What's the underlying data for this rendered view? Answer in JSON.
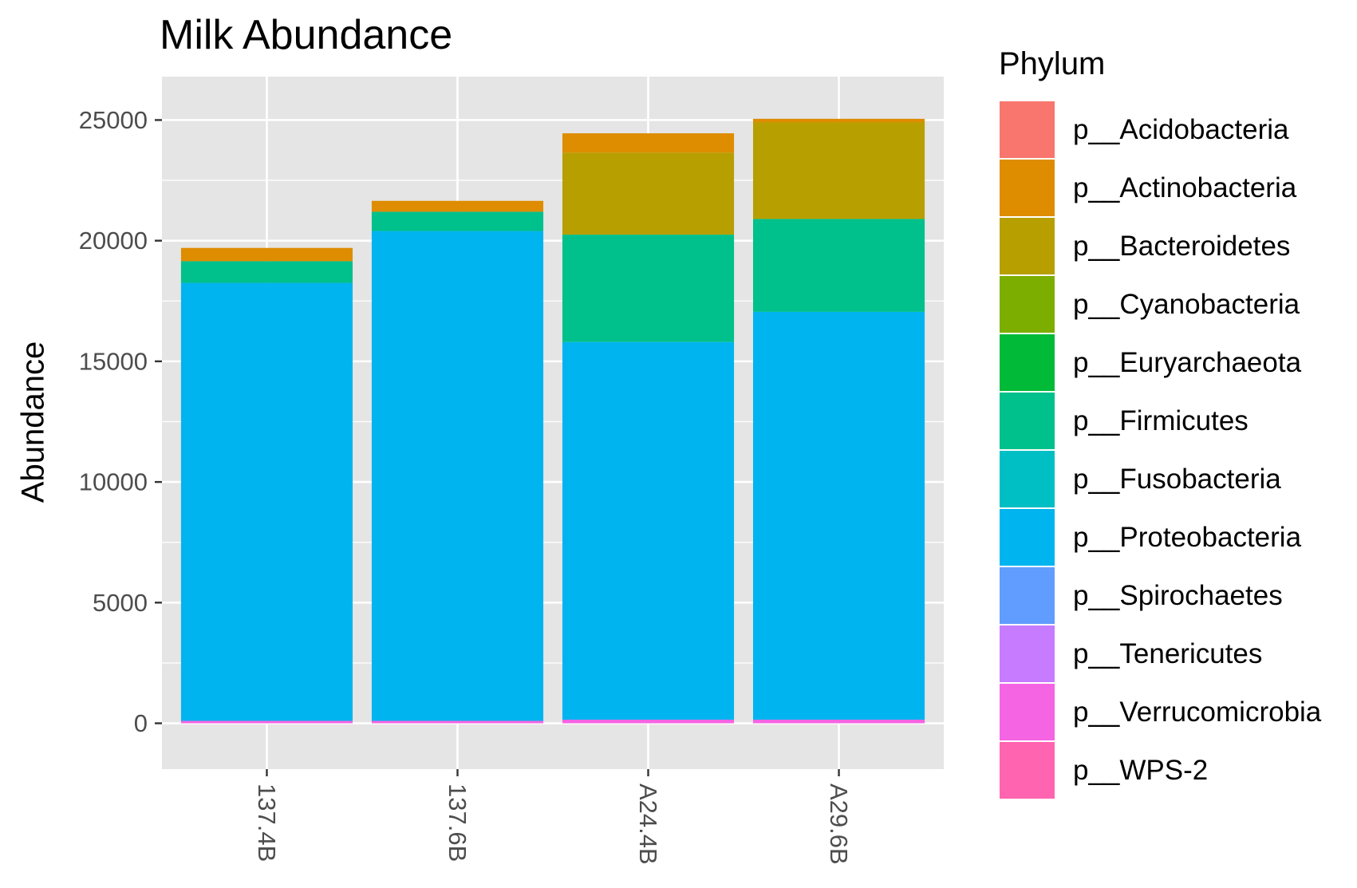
{
  "chart_data": {
    "type": "bar",
    "stacked": true,
    "title": "Milk Abundance",
    "xlabel": "",
    "ylabel": "Abundance",
    "legend_title": "Phylum",
    "legend_position": "right",
    "grid": true,
    "ylim": [
      -1900,
      26800
    ],
    "yticks": [
      0,
      5000,
      10000,
      15000,
      20000,
      25000
    ],
    "categories": [
      "137.4B",
      "137.6B",
      "A24.4B",
      "A29.6B"
    ],
    "series": [
      {
        "name": "p__Acidobacteria",
        "color": "#F8766D",
        "values": [
          0,
          0,
          0,
          0
        ]
      },
      {
        "name": "p__Actinobacteria",
        "color": "#DE8C00",
        "values": [
          550,
          450,
          800,
          150
        ]
      },
      {
        "name": "p__Bacteroidetes",
        "color": "#B79F00",
        "values": [
          0,
          0,
          3400,
          4000
        ]
      },
      {
        "name": "p__Cyanobacteria",
        "color": "#7CAE00",
        "values": [
          0,
          0,
          0,
          0
        ]
      },
      {
        "name": "p__Euryarchaeota",
        "color": "#00BA38",
        "values": [
          0,
          0,
          0,
          0
        ]
      },
      {
        "name": "p__Firmicutes",
        "color": "#00C08B",
        "values": [
          900,
          800,
          4450,
          3850
        ]
      },
      {
        "name": "p__Fusobacteria",
        "color": "#00BFC4",
        "values": [
          0,
          0,
          0,
          0
        ]
      },
      {
        "name": "p__Proteobacteria",
        "color": "#00B4F0",
        "values": [
          18150,
          20300,
          15650,
          16900
        ]
      },
      {
        "name": "p__Spirochaetes",
        "color": "#619CFF",
        "values": [
          0,
          0,
          0,
          0
        ]
      },
      {
        "name": "p__Tenericutes",
        "color": "#C77CFF",
        "values": [
          0,
          0,
          0,
          0
        ]
      },
      {
        "name": "p__Verrucomicrobia",
        "color": "#F564E3",
        "values": [
          100,
          100,
          150,
          150
        ]
      },
      {
        "name": "p__WPS-2",
        "color": "#FF64B0",
        "values": [
          0,
          0,
          0,
          0
        ]
      }
    ]
  }
}
